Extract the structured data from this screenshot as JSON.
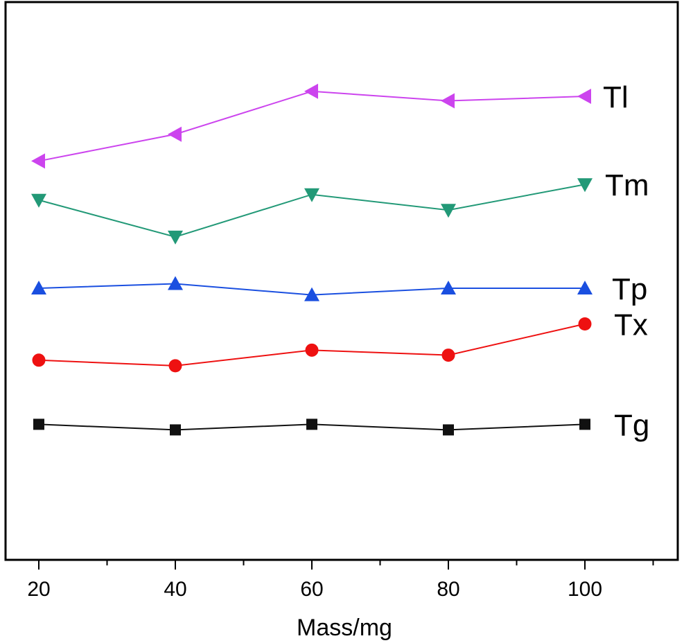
{
  "chart_data": {
    "type": "line",
    "title": "",
    "xlabel": "Mass/mg",
    "ylabel": "",
    "x": [
      20,
      40,
      60,
      80,
      100
    ],
    "xticks": [
      "20",
      "40",
      "60",
      "80",
      "100"
    ],
    "xlim": [
      15,
      115
    ],
    "ylim": [
      0,
      100
    ],
    "grid": false,
    "legend": "inline labels at right end of each series",
    "series": [
      {
        "name": "Tl",
        "marker": "triangle-left",
        "color": "#cc44ee",
        "values": [
          71.5,
          76.3,
          84.0,
          82.3,
          83.1
        ]
      },
      {
        "name": "Tm",
        "marker": "triangle-down",
        "color": "#229977",
        "values": [
          64.5,
          57.9,
          65.5,
          62.7,
          67.3
        ]
      },
      {
        "name": "Tp",
        "marker": "triangle-up",
        "color": "#1a4fe0",
        "values": [
          48.7,
          49.5,
          47.5,
          48.7,
          48.7
        ]
      },
      {
        "name": "Tx",
        "marker": "circle",
        "color": "#ee1111",
        "values": [
          35.8,
          34.8,
          37.6,
          36.7,
          42.3
        ]
      },
      {
        "name": "Tg",
        "marker": "square",
        "color": "#111111",
        "values": [
          24.3,
          23.3,
          24.3,
          23.3,
          24.3
        ]
      }
    ]
  }
}
